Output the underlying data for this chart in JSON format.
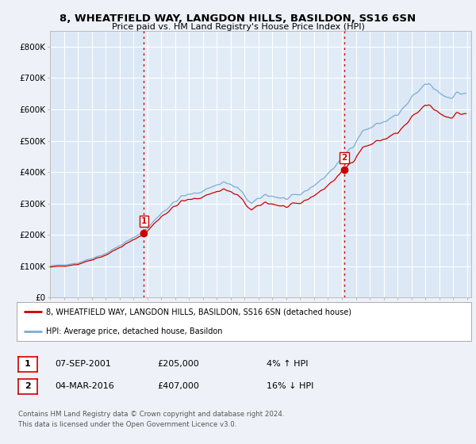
{
  "title_line1": "8, WHEATFIELD WAY, LANGDON HILLS, BASILDON, SS16 6SN",
  "title_line2": "Price paid vs. HM Land Registry's House Price Index (HPI)",
  "background_color": "#eef2f8",
  "plot_bg_color": "#dce8f5",
  "legend_label_red": "8, WHEATFIELD WAY, LANGDON HILLS, BASILDON, SS16 6SN (detached house)",
  "legend_label_blue": "HPI: Average price, detached house, Basildon",
  "note1_date": "07-SEP-2001",
  "note1_price": "£205,000",
  "note1_hpi": "4% ↑ HPI",
  "note2_date": "04-MAR-2016",
  "note2_price": "£407,000",
  "note2_hpi": "16% ↓ HPI",
  "footer": "Contains HM Land Registry data © Crown copyright and database right 2024.\nThis data is licensed under the Open Government Licence v3.0.",
  "ylim_min": 0,
  "ylim_max": 850000,
  "yticks": [
    0,
    100000,
    200000,
    300000,
    400000,
    500000,
    600000,
    700000,
    800000
  ],
  "ytick_labels": [
    "£0",
    "£100K",
    "£200K",
    "£300K",
    "£400K",
    "£500K",
    "£600K",
    "£700K",
    "£800K"
  ],
  "sale1_x": 2001.75,
  "sale1_y": 205000,
  "sale2_x": 2016.17,
  "sale2_y": 407000,
  "red_color": "#cc0000",
  "blue_color": "#7aadd4",
  "vline_color": "#cc0000",
  "xmin": 1995.0,
  "xmax": 2025.3
}
